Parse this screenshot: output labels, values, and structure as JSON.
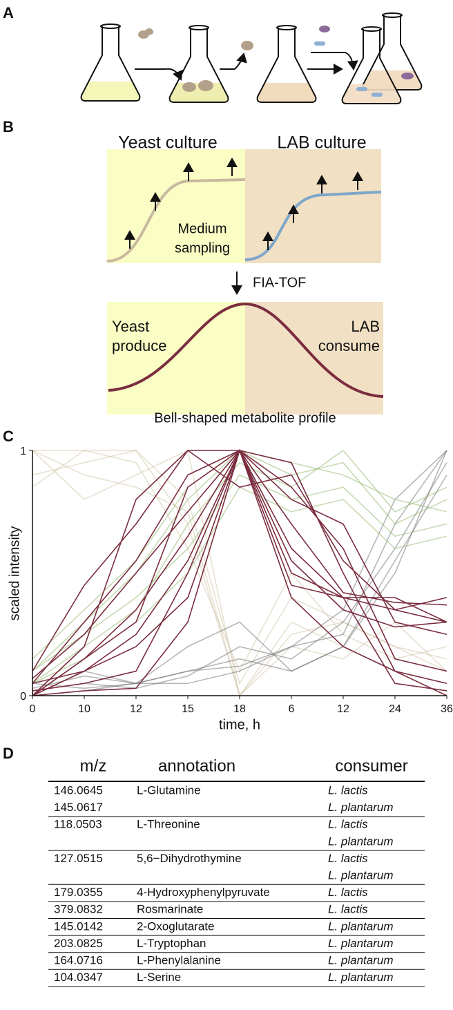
{
  "panel_labels": [
    "A",
    "B",
    "C",
    "D"
  ],
  "diagram": {
    "yeast_title": "Yeast culture",
    "lab_title": "LAB culture",
    "sampling": [
      "Medium",
      "sampling"
    ],
    "method": "FIA-TOF",
    "produce": [
      "Yeast",
      "produce"
    ],
    "consume": [
      "LAB",
      "consume"
    ],
    "caption": "Bell-shaped metabolite profile"
  },
  "chart_data": {
    "type": "line",
    "categories": [
      "0",
      "10",
      "12",
      "15",
      "18",
      "6",
      "12",
      "24",
      "36"
    ],
    "xlabel": "time, h",
    "ylabel": "scaled intensity",
    "ylim": [
      0,
      1
    ],
    "yticks": [
      0,
      1
    ],
    "series": [
      {
        "color": "#c9bc9c",
        "opacity": 0.45,
        "values": [
          1,
          1,
          1,
          0.7,
          0,
          0.3,
          0.2,
          0.1,
          0.05
        ]
      },
      {
        "color": "#c9bc9c",
        "opacity": 0.45,
        "values": [
          0.9,
          0.95,
          1,
          0.8,
          0.05,
          0.4,
          0.3,
          0.2,
          0.1
        ]
      },
      {
        "color": "#c9bc9c",
        "opacity": 0.45,
        "values": [
          1,
          0.8,
          0.9,
          1,
          0,
          0.2,
          0.15,
          0.3,
          0.1
        ]
      },
      {
        "color": "#c9bc9c",
        "opacity": 0.45,
        "values": [
          0.85,
          1,
          0.95,
          0.6,
          0.1,
          0.5,
          0.25,
          0.15,
          0.2
        ]
      },
      {
        "color": "#c9bc9c",
        "opacity": 0.45,
        "values": [
          1,
          0.9,
          0.85,
          0.75,
          0,
          0.25,
          0.3,
          0.2,
          0.15
        ]
      },
      {
        "color": "#707070",
        "opacity": 0.5,
        "values": [
          0,
          0.02,
          0.05,
          0.1,
          0.15,
          0.1,
          0.2,
          0.5,
          1
        ]
      },
      {
        "color": "#707070",
        "opacity": 0.5,
        "values": [
          0.02,
          0.05,
          0.03,
          0.08,
          0.2,
          0.15,
          0.3,
          0.6,
          0.95
        ]
      },
      {
        "color": "#707070",
        "opacity": 0.5,
        "values": [
          0.05,
          0.03,
          0.05,
          0.1,
          0.12,
          0.2,
          0.25,
          0.7,
          1
        ]
      },
      {
        "color": "#707070",
        "opacity": 0.5,
        "values": [
          0,
          0.1,
          0.05,
          0.2,
          0.3,
          0.1,
          0.2,
          0.55,
          0.9
        ]
      },
      {
        "color": "#707070",
        "opacity": 0.5,
        "values": [
          0.03,
          0.08,
          0.05,
          0.05,
          0.1,
          0.2,
          0.35,
          0.8,
          1
        ]
      },
      {
        "color": "#8fb56a",
        "opacity": 0.5,
        "values": [
          0.1,
          0.3,
          0.5,
          0.8,
          1,
          0.9,
          0.95,
          0.7,
          0.8
        ]
      },
      {
        "color": "#8fb56a",
        "opacity": 0.5,
        "values": [
          0.05,
          0.2,
          0.35,
          0.7,
          0.95,
          0.85,
          1,
          0.75,
          0.85
        ]
      },
      {
        "color": "#8fb56a",
        "opacity": 0.5,
        "values": [
          0.1,
          0.25,
          0.4,
          0.6,
          0.9,
          0.8,
          0.85,
          0.65,
          0.7
        ]
      },
      {
        "color": "#8fb56a",
        "opacity": 0.5,
        "values": [
          0.15,
          0.35,
          0.55,
          0.85,
          1,
          0.95,
          0.9,
          0.8,
          0.75
        ]
      },
      {
        "color": "#8fb56a",
        "opacity": 0.5,
        "values": [
          0.05,
          0.15,
          0.3,
          0.5,
          0.85,
          0.75,
          0.8,
          0.6,
          0.65
        ]
      },
      {
        "color": "#7b2d40",
        "opacity": 1,
        "values": [
          0,
          0.15,
          0.35,
          0.65,
          1,
          0.45,
          0.4,
          0.35,
          0.3
        ]
      },
      {
        "color": "#7b2d40",
        "opacity": 1,
        "values": [
          0.05,
          0.3,
          0.55,
          0.9,
          1,
          0.8,
          0.7,
          0.3,
          0.25
        ]
      },
      {
        "color": "#7b2d40",
        "opacity": 1,
        "values": [
          0,
          0.1,
          0.25,
          0.55,
          1,
          0.95,
          0.5,
          0.1,
          0.05
        ]
      },
      {
        "color": "#7b2d40",
        "opacity": 1,
        "values": [
          0.02,
          0.05,
          0.1,
          0.5,
          1,
          0.7,
          0.42,
          0.38,
          0.37
        ]
      },
      {
        "color": "#7b2d40",
        "opacity": 1,
        "values": [
          0.1,
          0.45,
          0.7,
          1,
          1,
          0.6,
          0.4,
          0.4,
          0.3
        ]
      },
      {
        "color": "#7b2d40",
        "opacity": 1,
        "values": [
          0,
          0.02,
          0.03,
          0.3,
          1,
          0.4,
          0.2,
          0.1,
          0
        ]
      },
      {
        "color": "#7b2d40",
        "opacity": 1,
        "values": [
          0.07,
          0.25,
          0.5,
          0.75,
          1,
          0.85,
          0.6,
          0.15,
          0.1
        ]
      },
      {
        "color": "#7b2d40",
        "opacity": 1,
        "values": [
          0,
          0.2,
          0.8,
          1,
          0.85,
          0.9,
          0.55,
          0.35,
          0.4
        ]
      },
      {
        "color": "#7b2d40",
        "opacity": 1,
        "values": [
          0.05,
          0.1,
          0.2,
          0.4,
          1,
          0.55,
          0.35,
          0.28,
          0.3
        ]
      },
      {
        "color": "#7b2d40",
        "opacity": 1,
        "values": [
          0,
          0.15,
          0.3,
          0.85,
          1,
          0.5,
          0.4,
          0.05,
          0.02
        ]
      }
    ]
  },
  "table": {
    "header": [
      "m/z",
      "annotation",
      "consumer"
    ],
    "groups": [
      [
        {
          "mz": "146.0645",
          "annotation": "L-Glutamine",
          "consumer": "L. lactis"
        },
        {
          "mz": "145.0617",
          "consumer": "L. plantarum"
        }
      ],
      [
        {
          "mz": "118.0503",
          "annotation": "L-Threonine",
          "consumer": "L. lactis"
        },
        {
          "consumer": "L. plantarum"
        }
      ],
      [
        {
          "mz": "127.0515",
          "annotation": "5,6−Dihydrothymine",
          "consumer": "L. lactis"
        },
        {
          "consumer": "L. plantarum"
        }
      ],
      [
        {
          "mz": "179.0355",
          "annotation": "4-Hydroxyphenylpyruvate",
          "consumer": "L. lactis"
        }
      ],
      [
        {
          "mz": "379.0832",
          "annotation": "Rosmarinate",
          "consumer": "L. lactis"
        }
      ],
      [
        {
          "mz": "145.0142",
          "annotation": "2-Oxoglutarate",
          "consumer": "L. plantarum"
        }
      ],
      [
        {
          "mz": "203.0825",
          "annotation": "L-Tryptophan",
          "consumer": "L. plantarum"
        }
      ],
      [
        {
          "mz": "164.0716",
          "annotation": "L-Phenylalanine",
          "consumer": "L. plantarum"
        }
      ],
      [
        {
          "mz": "104.0347",
          "annotation": "L-Serine",
          "consumer": "L. plantarum"
        }
      ]
    ]
  }
}
